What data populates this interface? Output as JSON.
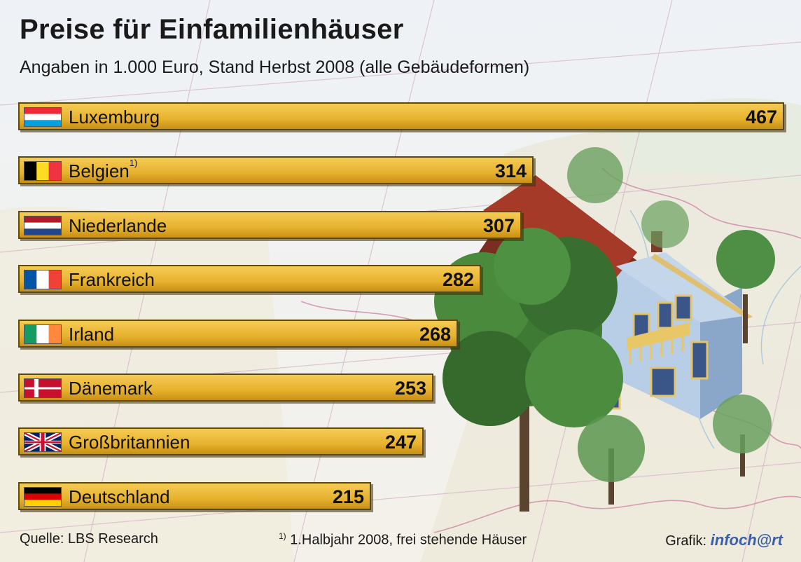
{
  "title": "Preise für Einfamilienhäuser",
  "subtitle": "Angaben in 1.000 Euro, Stand Herbst 2008 (alle Gebäudeformen)",
  "chart_data": {
    "type": "bar",
    "orientation": "horizontal",
    "title": "Preise für Einfamilienhäuser",
    "subtitle": "Angaben in 1.000 Euro, Stand Herbst 2008 (alle Gebäudeformen)",
    "categories": [
      "Luxemburg",
      "Belgien",
      "Niederlande",
      "Frankreich",
      "Irland",
      "Dänemark",
      "Großbritannien",
      "Deutschland"
    ],
    "values": [
      467,
      314,
      307,
      282,
      268,
      253,
      247,
      215
    ],
    "footnote_markers": [
      "",
      "1)",
      "",
      "",
      "",
      "",
      "",
      ""
    ],
    "flags": [
      "flag-luxembourg-icon",
      "flag-belgium-icon",
      "flag-netherlands-icon",
      "flag-france-icon",
      "flag-ireland-icon",
      "flag-denmark-icon",
      "flag-uk-icon",
      "flag-germany-icon"
    ],
    "bar_color": "#e7b22e",
    "grid": false,
    "legend": "none"
  },
  "footer": {
    "source": "Quelle: LBS Research",
    "note_marker": "1)",
    "note": " 1.Halbjahr 2008, frei stehende Häuser",
    "credit_label": "Grafik:",
    "logo": "infoch@rt"
  }
}
